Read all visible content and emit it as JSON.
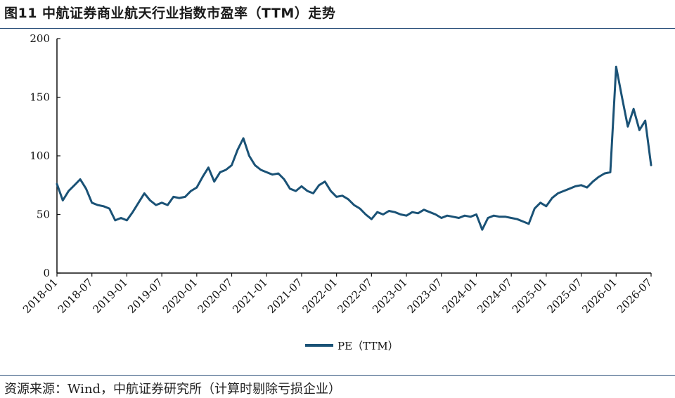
{
  "header": {
    "title": "图11  中航证券商业航天行业指数市盈率（TTM）走势"
  },
  "footer": {
    "source": "资源来源：Wind，中航证券研究所（计算时剔除亏损企业）"
  },
  "colors": {
    "series": "#1a5276",
    "axis": "#111111",
    "rule": "#2a4f7a"
  },
  "chart_data": {
    "type": "line",
    "ylim": [
      0,
      200
    ],
    "yticks": [
      0,
      50,
      100,
      150,
      200
    ],
    "x_start": "2018-01",
    "x_end": "2026-07",
    "xticks": [
      "2018-01",
      "2018-07",
      "2019-01",
      "2019-07",
      "2020-01",
      "2020-07",
      "2021-01",
      "2021-07",
      "2022-01",
      "2022-07",
      "2023-01",
      "2023-07",
      "2024-01",
      "2024-07",
      "2025-01",
      "2025-07",
      "2026-01",
      "2026-07"
    ],
    "grid": false,
    "legend_position": "bottom-center",
    "series": [
      {
        "name": "PE（TTM）",
        "points": [
          [
            "2018-01",
            76
          ],
          [
            "2018-02",
            62
          ],
          [
            "2018-03",
            70
          ],
          [
            "2018-04",
            75
          ],
          [
            "2018-05",
            80
          ],
          [
            "2018-06",
            72
          ],
          [
            "2018-07",
            60
          ],
          [
            "2018-08",
            58
          ],
          [
            "2018-09",
            57
          ],
          [
            "2018-10",
            55
          ],
          [
            "2018-11",
            45
          ],
          [
            "2018-12",
            47
          ],
          [
            "2019-01",
            45
          ],
          [
            "2019-02",
            52
          ],
          [
            "2019-03",
            60
          ],
          [
            "2019-04",
            68
          ],
          [
            "2019-05",
            62
          ],
          [
            "2019-06",
            58
          ],
          [
            "2019-07",
            60
          ],
          [
            "2019-08",
            58
          ],
          [
            "2019-09",
            65
          ],
          [
            "2019-10",
            64
          ],
          [
            "2019-11",
            65
          ],
          [
            "2019-12",
            70
          ],
          [
            "2020-01",
            73
          ],
          [
            "2020-02",
            82
          ],
          [
            "2020-03",
            90
          ],
          [
            "2020-04",
            78
          ],
          [
            "2020-05",
            86
          ],
          [
            "2020-06",
            88
          ],
          [
            "2020-07",
            92
          ],
          [
            "2020-08",
            105
          ],
          [
            "2020-09",
            115
          ],
          [
            "2020-10",
            100
          ],
          [
            "2020-11",
            92
          ],
          [
            "2020-12",
            88
          ],
          [
            "2021-01",
            86
          ],
          [
            "2021-02",
            84
          ],
          [
            "2021-03",
            85
          ],
          [
            "2021-04",
            80
          ],
          [
            "2021-05",
            72
          ],
          [
            "2021-06",
            70
          ],
          [
            "2021-07",
            74
          ],
          [
            "2021-08",
            70
          ],
          [
            "2021-09",
            68
          ],
          [
            "2021-10",
            75
          ],
          [
            "2021-11",
            78
          ],
          [
            "2021-12",
            70
          ],
          [
            "2022-01",
            65
          ],
          [
            "2022-02",
            66
          ],
          [
            "2022-03",
            63
          ],
          [
            "2022-04",
            58
          ],
          [
            "2022-05",
            55
          ],
          [
            "2022-06",
            50
          ],
          [
            "2022-07",
            46
          ],
          [
            "2022-08",
            52
          ],
          [
            "2022-09",
            50
          ],
          [
            "2022-10",
            53
          ],
          [
            "2022-11",
            52
          ],
          [
            "2022-12",
            50
          ],
          [
            "2023-01",
            49
          ],
          [
            "2023-02",
            52
          ],
          [
            "2023-03",
            51
          ],
          [
            "2023-04",
            54
          ],
          [
            "2023-05",
            52
          ],
          [
            "2023-06",
            50
          ],
          [
            "2023-07",
            47
          ],
          [
            "2023-08",
            49
          ],
          [
            "2023-09",
            48
          ],
          [
            "2023-10",
            47
          ],
          [
            "2023-11",
            49
          ],
          [
            "2023-12",
            48
          ],
          [
            "2024-01",
            50
          ],
          [
            "2024-02",
            37
          ],
          [
            "2024-03",
            47
          ],
          [
            "2024-04",
            49
          ],
          [
            "2024-05",
            48
          ],
          [
            "2024-06",
            48
          ],
          [
            "2024-07",
            47
          ],
          [
            "2024-08",
            46
          ],
          [
            "2024-09",
            44
          ],
          [
            "2024-10",
            42
          ],
          [
            "2024-11",
            55
          ],
          [
            "2024-12",
            60
          ],
          [
            "2025-01",
            57
          ],
          [
            "2025-02",
            64
          ],
          [
            "2025-03",
            68
          ],
          [
            "2025-04",
            70
          ],
          [
            "2025-05",
            72
          ],
          [
            "2025-06",
            74
          ],
          [
            "2025-07",
            75
          ],
          [
            "2025-08",
            73
          ],
          [
            "2025-09",
            78
          ],
          [
            "2025-10",
            82
          ],
          [
            "2025-11",
            85
          ],
          [
            "2025-12",
            86
          ],
          [
            "2026-01",
            176
          ],
          [
            "2026-02",
            150
          ],
          [
            "2026-03",
            125
          ],
          [
            "2026-04",
            140
          ],
          [
            "2026-05",
            122
          ],
          [
            "2026-06",
            130
          ],
          [
            "2026-07",
            92
          ]
        ]
      }
    ]
  }
}
